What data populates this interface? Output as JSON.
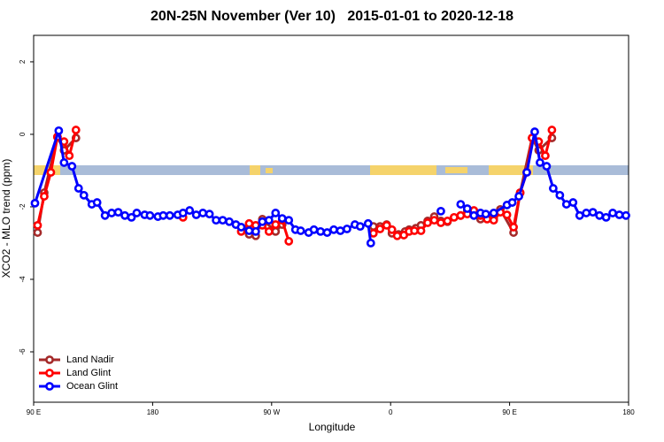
{
  "chart_data": {
    "type": "line",
    "title": "20N-25N November (Ver 10)   2015-01-01 to 2020-12-18",
    "xlabel": "Longitude",
    "ylabel": "XCO2 - MLO trend (ppm)",
    "xlim": [
      90,
      540
    ],
    "ylim": [
      -7.39,
      2.73
    ],
    "xticks": [
      {
        "value": 90,
        "label": "90 E"
      },
      180,
      {
        "value": 270,
        "label": "90 W"
      },
      {
        "value": 360,
        "label": "0"
      },
      {
        "value": 450,
        "label": "90 E"
      },
      {
        "value": 540,
        "label": "180"
      }
    ],
    "yticks": [
      2,
      0,
      -2,
      -4,
      -6
    ],
    "legend": "bottom-left",
    "series": [
      {
        "name": "Land Nadir",
        "color": "#a52a2a",
        "x": [
          93,
          98,
          108,
          113,
          122,
          null,
          253,
          258,
          263,
          273,
          278,
          null,
          347,
          352,
          357,
          361,
          366,
          371,
          374,
          379,
          383,
          388,
          393,
          398,
          403,
          413,
          418,
          428,
          433,
          438,
          443,
          453,
          458,
          467,
          472,
          482
        ],
        "values": [
          -2.71,
          -1.61,
          -0.07,
          -0.44,
          -0.1,
          null,
          -2.76,
          -2.8,
          -2.34,
          -2.68,
          -2.49,
          null,
          -2.54,
          -2.54,
          -2.49,
          -2.73,
          -2.76,
          -2.68,
          -2.63,
          -2.59,
          -2.51,
          -2.39,
          -2.27,
          -2.39,
          -2.41,
          -2.24,
          -2.1,
          -2.34,
          -2.24,
          -2.32,
          -2.07,
          -2.71,
          -1.61,
          -0.1,
          -0.44,
          -0.1
        ]
      },
      {
        "name": "Land Glint",
        "color": "#ff0000",
        "x": [
          93,
          98,
          103,
          108,
          113,
          117,
          122,
          null,
          203,
          null,
          247,
          253,
          258,
          263,
          268,
          273,
          278,
          283,
          null,
          347,
          352,
          357,
          361,
          365,
          370,
          374,
          378,
          383,
          388,
          393,
          398,
          403,
          408,
          413,
          418,
          423,
          428,
          433,
          438,
          443,
          448,
          453,
          458,
          463,
          467,
          472,
          477,
          482
        ],
        "values": [
          -2.51,
          -1.71,
          -1.05,
          -0.07,
          -0.2,
          -0.59,
          0.12,
          null,
          -2.29,
          null,
          -2.68,
          -2.46,
          -2.51,
          -2.51,
          -2.68,
          -2.49,
          -2.37,
          -2.95,
          null,
          -2.73,
          -2.61,
          -2.51,
          -2.63,
          -2.8,
          -2.78,
          -2.68,
          -2.66,
          -2.66,
          -2.44,
          -2.37,
          -2.44,
          -2.39,
          -2.29,
          -2.24,
          -2.2,
          -2.1,
          -2.24,
          -2.34,
          -2.37,
          -2.15,
          -2.22,
          -2.56,
          -1.61,
          -1.05,
          -0.1,
          -0.2,
          -0.59,
          0.12
        ]
      },
      {
        "name": "Ocean Glint",
        "color": "#0000ff",
        "x": [
          91,
          109,
          113,
          119,
          124,
          128,
          134,
          138,
          144,
          149,
          154,
          159,
          164,
          168,
          174,
          178,
          184,
          188,
          193,
          199,
          203,
          208,
          213,
          218,
          223,
          228,
          233,
          238,
          243,
          247,
          253,
          258,
          263,
          268,
          273,
          278,
          283,
          288,
          292,
          298,
          302,
          307,
          312,
          317,
          322,
          327,
          333,
          337,
          343,
          345,
          null,
          398,
          null,
          413,
          418,
          423,
          428,
          432,
          438,
          448,
          452,
          457,
          463,
          469,
          473,
          478,
          483,
          488,
          493,
          498,
          503,
          508,
          513,
          518,
          523,
          528,
          533,
          538
        ],
        "values": [
          -1.9,
          0.1,
          -0.78,
          -0.88,
          -1.49,
          -1.68,
          -1.93,
          -1.88,
          -2.24,
          -2.17,
          -2.15,
          -2.24,
          -2.29,
          -2.17,
          -2.22,
          -2.24,
          -2.27,
          -2.24,
          -2.24,
          -2.22,
          -2.17,
          -2.1,
          -2.22,
          -2.17,
          -2.2,
          -2.37,
          -2.37,
          -2.41,
          -2.49,
          -2.56,
          -2.66,
          -2.68,
          -2.41,
          -2.37,
          -2.17,
          -2.32,
          -2.37,
          -2.63,
          -2.66,
          -2.71,
          -2.63,
          -2.68,
          -2.71,
          -2.63,
          -2.66,
          -2.61,
          -2.49,
          -2.54,
          -2.46,
          -3.0,
          null,
          -2.12,
          null,
          -1.93,
          -2.05,
          -2.24,
          -2.17,
          -2.2,
          -2.17,
          -1.95,
          -1.88,
          -1.71,
          -1.05,
          0.07,
          -0.78,
          -0.88,
          -1.49,
          -1.68,
          -1.93,
          -1.88,
          -2.24,
          -2.17,
          -2.15,
          -2.24,
          -2.29,
          -2.17,
          -2.22,
          -2.24
        ]
      }
    ]
  }
}
